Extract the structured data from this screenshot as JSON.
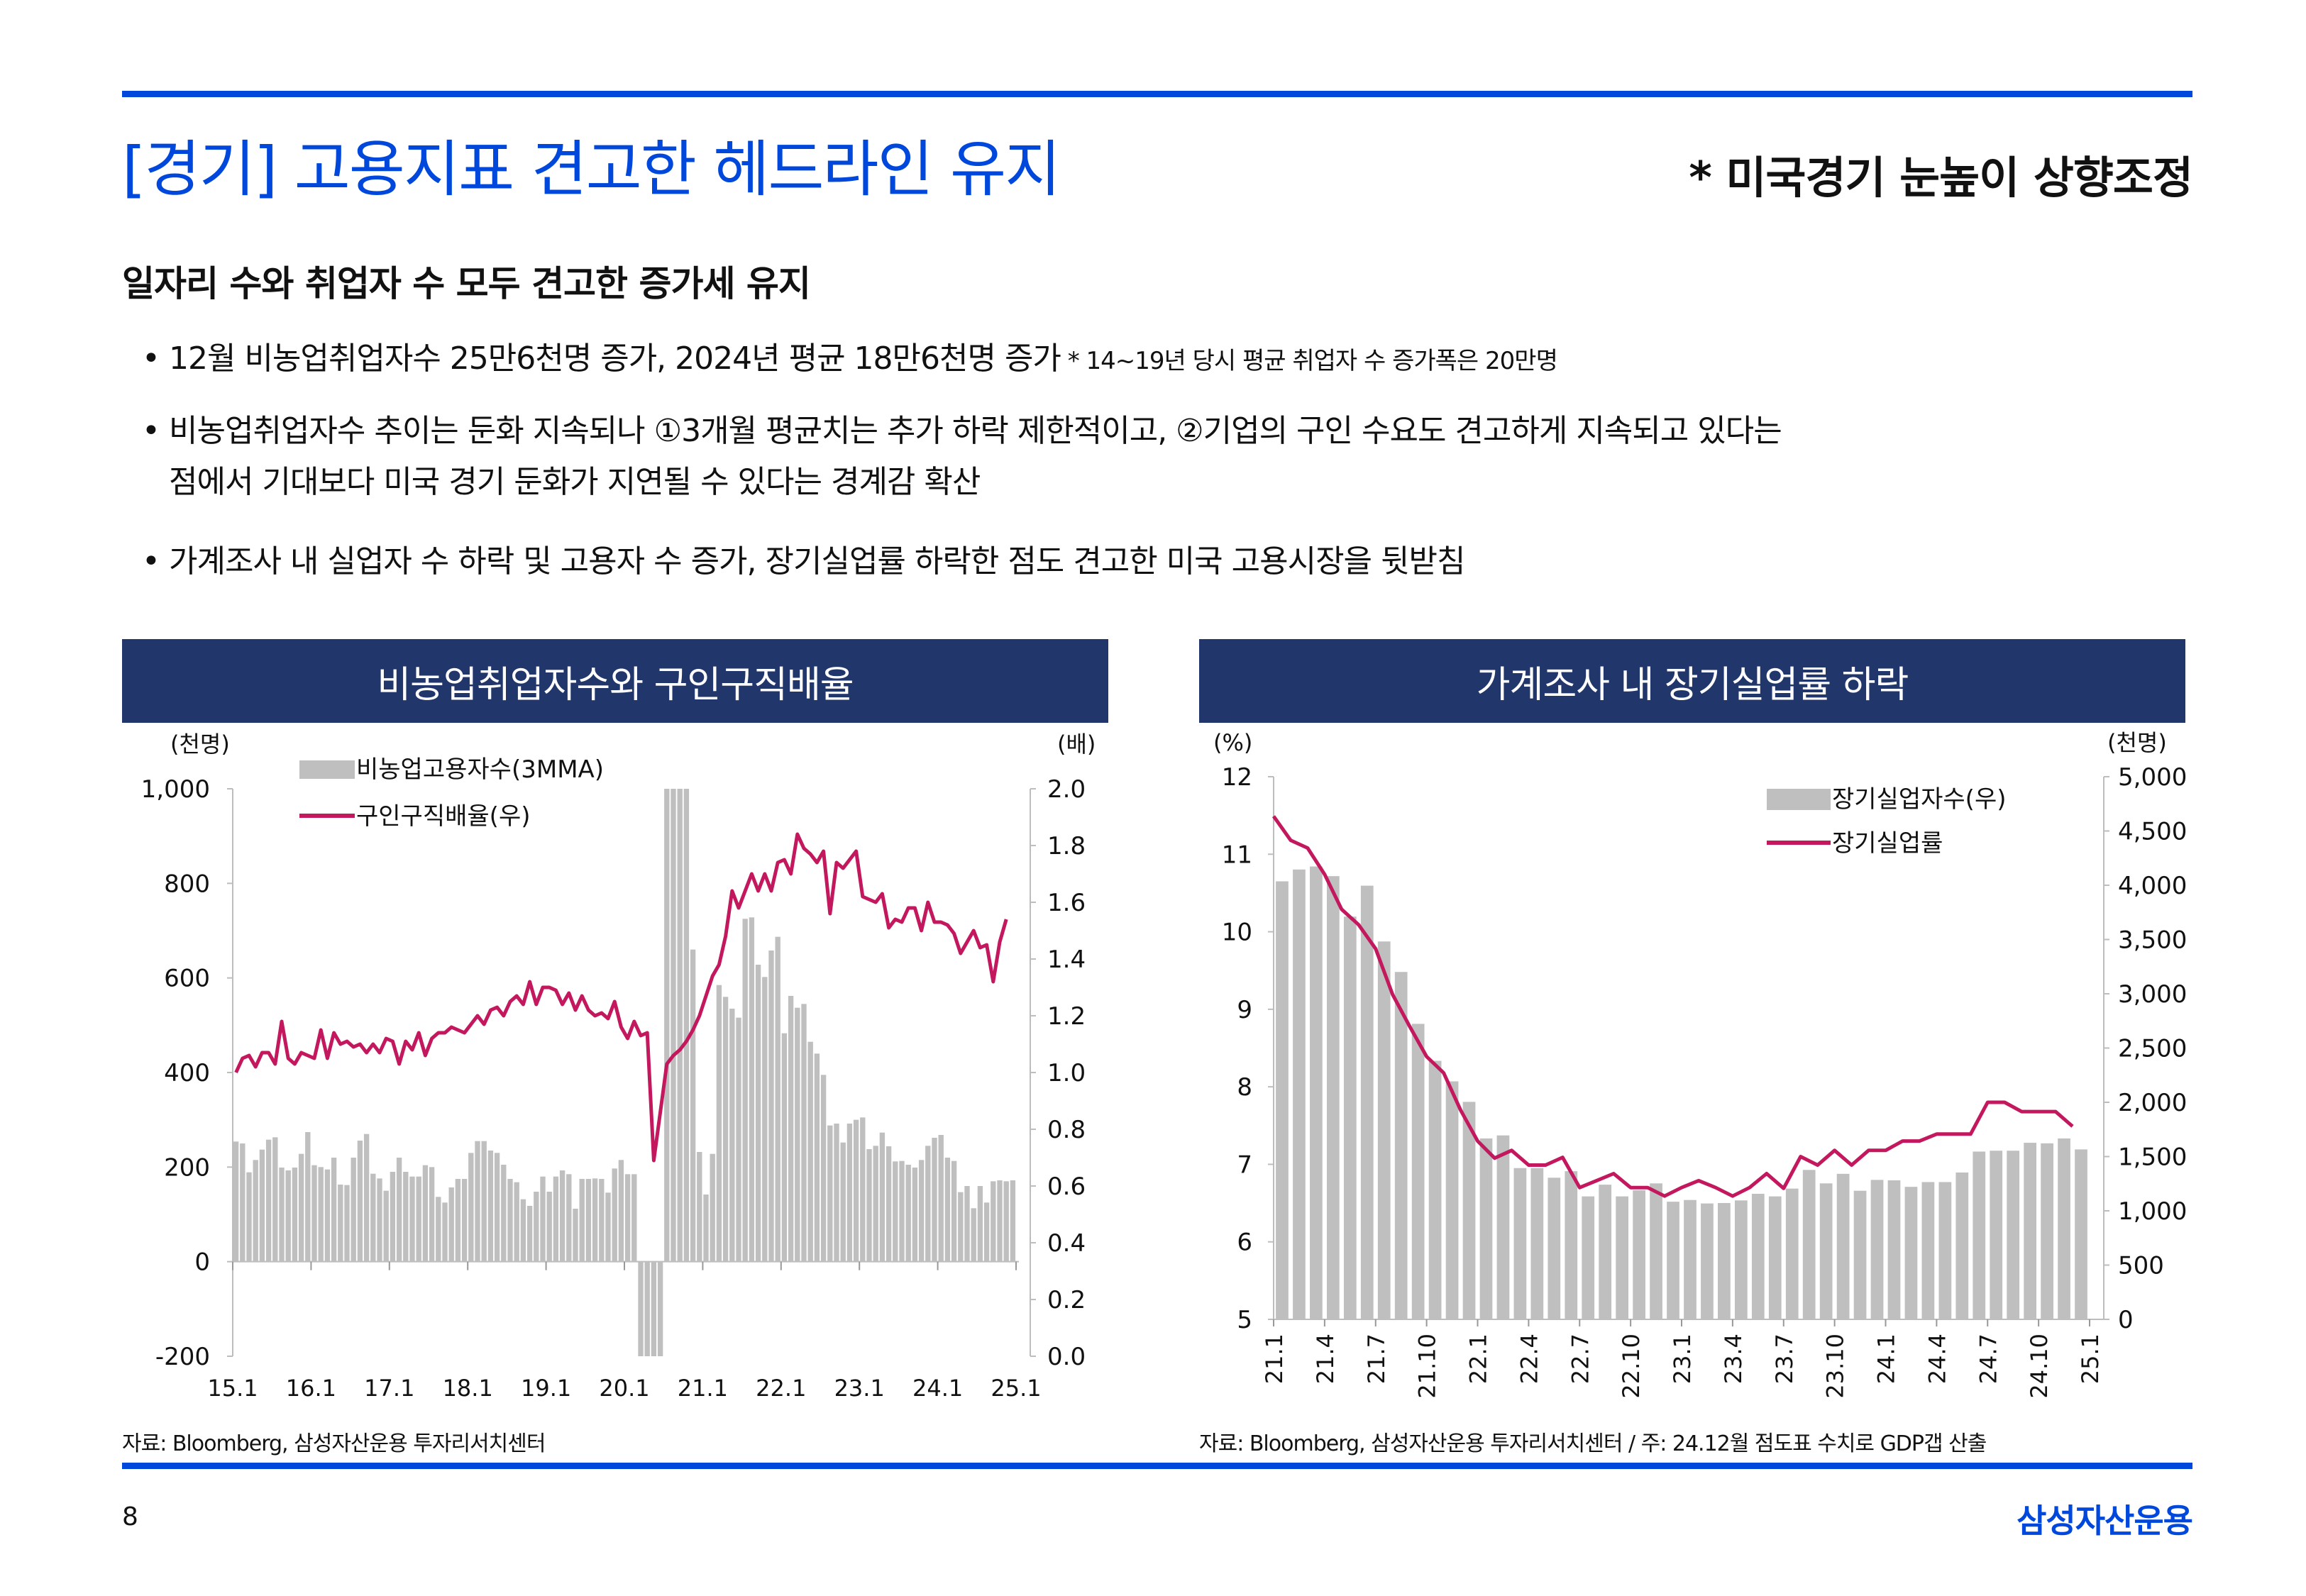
{
  "header": {
    "title": "[경기] 고용지표 견고한 헤드라인 유지",
    "subtitle": "* 미국경기 눈높이 상향조정"
  },
  "section": {
    "heading": "일자리 수와 취업자 수 모두 견고한 증가세 유지",
    "bullets": [
      {
        "text": "12월 비농업취업자수 25만6천명 증가, 2024년 평균 18만6천명 증가",
        "note": " * 14~19년 당시 평균 취업자 수 증가폭은 20만명"
      },
      {
        "text": "비농업취업자수 추이는 둔화 지속되나 ①3개월 평균치는 추가 하락 제한적이고, ②기업의 구인 수요도 견고하게 지속되고 있다는",
        "cont": "점에서 기대보다 미국 경기 둔화가 지연될 수 있다는 경계감 확산"
      },
      {
        "text": "가계조사 내 실업자 수 하락 및 고용자 수 증가, 장기실업률 하락한 점도 견고한 미국 고용시장을 뒷받침"
      }
    ],
    "bullet_symbol": "•"
  },
  "footer": {
    "left_source": "자료: Bloomberg, 삼성자산운용 투자리서치센터",
    "right_source": "자료: Bloomberg, 삼성자산운용 투자리서치센터 / 주: 24.12월 점도표 수치로 GDP갭 산출",
    "page_number": "8",
    "brand": "삼성자산운용"
  },
  "colors": {
    "brand_blue": "#0048dc",
    "header_navy": "#21366b",
    "bar_gray": "#bfbfbf",
    "line_magenta": "#c3185e"
  },
  "chart_data": [
    {
      "type": "bar+line",
      "title": "비농업취업자수와 구인구직배율",
      "left_unit": "(천명)",
      "right_unit": "(배)",
      "ylim_left": [
        -200,
        1000
      ],
      "yticks_left": [
        "-200",
        "0",
        "200",
        "400",
        "600",
        "800",
        "1,000"
      ],
      "ylim_right": [
        0.0,
        2.0
      ],
      "yticks_right": [
        "0.0",
        "0.2",
        "0.4",
        "0.6",
        "0.8",
        "1.0",
        "1.2",
        "1.4",
        "1.6",
        "1.8",
        "2.0"
      ],
      "xticks": [
        "15.1",
        "16.1",
        "17.1",
        "18.1",
        "19.1",
        "20.1",
        "21.1",
        "22.1",
        "23.1",
        "24.1",
        "25.1"
      ],
      "x_start": "15.1",
      "series": [
        {
          "name": "비농업고용자수(3MMA)",
          "kind": "bar",
          "axis": "left",
          "values": [
            254,
            250,
            189,
            215,
            237,
            258,
            263,
            199,
            193,
            199,
            228,
            274,
            204,
            200,
            195,
            220,
            163,
            162,
            220,
            256,
            270,
            186,
            176,
            150,
            190,
            220,
            190,
            180,
            180,
            204,
            200,
            137,
            125,
            157,
            175,
            175,
            230,
            255,
            255,
            235,
            230,
            205,
            175,
            168,
            132,
            118,
            148,
            180,
            148,
            180,
            193,
            185,
            112,
            175,
            175,
            176,
            175,
            146,
            197,
            215,
            185,
            185,
            -200,
            -200,
            -200,
            -200,
            1000,
            1000,
            1000,
            1000,
            660,
            232,
            142,
            228,
            585,
            560,
            535,
            516,
            725,
            728,
            628,
            602,
            658,
            687,
            483,
            562,
            537,
            545,
            465,
            440,
            395,
            288,
            292,
            252,
            292,
            300,
            305,
            238,
            245,
            273,
            244,
            212,
            213,
            205,
            199,
            215,
            245,
            262,
            268,
            220,
            213,
            147,
            160,
            113,
            160,
            125,
            170,
            172,
            170,
            172
          ],
          "note": "Bars 20.3–20.6 and 20.7–20.10 are clipped at axis limits"
        },
        {
          "name": "구인구직배율(우)",
          "kind": "line",
          "axis": "right",
          "values": [
            1.0,
            1.05,
            1.06,
            1.02,
            1.07,
            1.07,
            1.03,
            1.18,
            1.05,
            1.03,
            1.07,
            1.06,
            1.05,
            1.15,
            1.05,
            1.14,
            1.1,
            1.11,
            1.09,
            1.1,
            1.07,
            1.1,
            1.07,
            1.12,
            1.11,
            1.03,
            1.11,
            1.08,
            1.14,
            1.06,
            1.12,
            1.14,
            1.14,
            1.16,
            1.15,
            1.14,
            1.17,
            1.2,
            1.17,
            1.22,
            1.23,
            1.2,
            1.25,
            1.27,
            1.24,
            1.32,
            1.24,
            1.3,
            1.3,
            1.29,
            1.24,
            1.28,
            1.22,
            1.27,
            1.22,
            1.2,
            1.21,
            1.19,
            1.25,
            1.16,
            1.12,
            1.18,
            1.13,
            1.14,
            0.69,
            0.86,
            1.03,
            1.06,
            1.08,
            1.11,
            1.15,
            1.2,
            1.27,
            1.34,
            1.38,
            1.48,
            1.64,
            1.58,
            1.64,
            1.7,
            1.64,
            1.7,
            1.64,
            1.74,
            1.75,
            1.7,
            1.84,
            1.79,
            1.77,
            1.74,
            1.78,
            1.56,
            1.74,
            1.72,
            1.75,
            1.78,
            1.62,
            1.61,
            1.6,
            1.63,
            1.51,
            1.54,
            1.53,
            1.58,
            1.58,
            1.5,
            1.6,
            1.53,
            1.53,
            1.52,
            1.49,
            1.42,
            1.46,
            1.5,
            1.44,
            1.45,
            1.32,
            1.46,
            1.54
          ]
        }
      ],
      "legend": "top-left"
    },
    {
      "type": "bar+line",
      "title": "가계조사 내 장기실업률 하락",
      "left_unit": "(%)",
      "right_unit": "(천명)",
      "ylim_left": [
        5,
        12
      ],
      "yticks_left": [
        "5",
        "6",
        "7",
        "8",
        "9",
        "10",
        "11",
        "12"
      ],
      "ylim_right": [
        0,
        5000
      ],
      "yticks_right": [
        "0",
        "500",
        "1,000",
        "1,500",
        "2,000",
        "2,500",
        "3,000",
        "3,500",
        "4,000",
        "4,500",
        "5,000"
      ],
      "xticks": [
        "21.1",
        "21.4",
        "21.7",
        "21.10",
        "22.1",
        "22.4",
        "22.7",
        "22.10",
        "23.1",
        "23.4",
        "23.7",
        "23.10",
        "24.1",
        "24.4",
        "24.7",
        "24.10",
        "25.1"
      ],
      "x_start": "21.1",
      "series": [
        {
          "name": "장기실업자수(우)",
          "kind": "bar",
          "axis": "right",
          "values": [
            4036,
            4145,
            4173,
            4084,
            3711,
            3996,
            3482,
            3201,
            2723,
            2382,
            2193,
            2004,
            1667,
            1695,
            1394,
            1394,
            1305,
            1365,
            1133,
            1241,
            1133,
            1189,
            1253,
            1084,
            1100,
            1068,
            1072,
            1096,
            1157,
            1133,
            1205,
            1377,
            1253,
            1341,
            1185,
            1285,
            1281,
            1221,
            1265,
            1265,
            1353,
            1546,
            1554,
            1554,
            1627,
            1622,
            1667,
            1566
          ]
        },
        {
          "name": "장기실업률",
          "kind": "line",
          "axis": "left",
          "values": [
            11.49,
            11.18,
            11.08,
            10.74,
            10.29,
            10.09,
            9.78,
            9.19,
            8.78,
            8.39,
            8.18,
            7.7,
            7.3,
            7.08,
            7.18,
            6.99,
            6.99,
            7.09,
            6.7,
            6.79,
            6.88,
            6.7,
            6.7,
            6.59,
            6.7,
            6.79,
            6.7,
            6.59,
            6.7,
            6.88,
            6.69,
            7.1,
            6.99,
            7.18,
            6.99,
            7.18,
            7.18,
            7.3,
            7.3,
            7.39,
            7.39,
            7.39,
            7.8,
            7.8,
            7.68,
            7.68,
            7.68,
            7.49
          ]
        }
      ],
      "legend": "top-right"
    }
  ]
}
